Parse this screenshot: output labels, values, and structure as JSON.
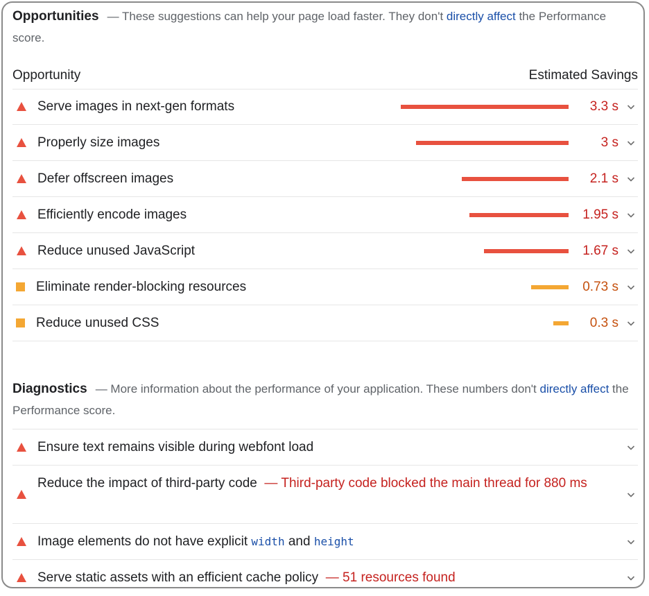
{
  "opportunities": {
    "title": "Opportunities",
    "desc_pre": "— These suggestions can help your page load faster. They don't ",
    "desc_link": "directly affect",
    "desc_post": " the Performance score.",
    "col_left": "Opportunity",
    "col_right": "Estimated Savings",
    "items": [
      {
        "label": "Serve images in next-gen formats",
        "value": "3.3 s",
        "savings_s": 3.3,
        "level": "red"
      },
      {
        "label": "Properly size images",
        "value": "3 s",
        "savings_s": 3.0,
        "level": "red"
      },
      {
        "label": "Defer offscreen images",
        "value": "2.1 s",
        "savings_s": 2.1,
        "level": "red"
      },
      {
        "label": "Efficiently encode images",
        "value": "1.95 s",
        "savings_s": 1.95,
        "level": "red"
      },
      {
        "label": "Reduce unused JavaScript",
        "value": "1.67 s",
        "savings_s": 1.67,
        "level": "red"
      },
      {
        "label": "Eliminate render-blocking resources",
        "value": "0.73 s",
        "savings_s": 0.73,
        "level": "orange"
      },
      {
        "label": "Reduce unused CSS",
        "value": "0.3 s",
        "savings_s": 0.3,
        "level": "orange"
      }
    ]
  },
  "diagnostics": {
    "title": "Diagnostics",
    "desc_pre": "— More information about the performance of your application. These numbers don't ",
    "desc_link": "directly affect",
    "desc_post": " the Performance score.",
    "items": [
      {
        "label": "Ensure text remains visible during webfont load"
      },
      {
        "label": "Reduce the impact of third-party code",
        "extra": "— Third-party code blocked the main thread for 880 ms"
      },
      {
        "label_pre": "Image elements do not have explicit ",
        "code1": "width",
        "mid": " and ",
        "code2": "height"
      },
      {
        "label": "Serve static assets with an efficient cache policy",
        "extra": "— 51 resources found"
      }
    ]
  },
  "colors": {
    "fail": "#e8513f",
    "average": "#f4a733"
  },
  "icons": {
    "fail": "triangle-icon",
    "average": "square-icon",
    "expand": "chevron-down-icon"
  }
}
